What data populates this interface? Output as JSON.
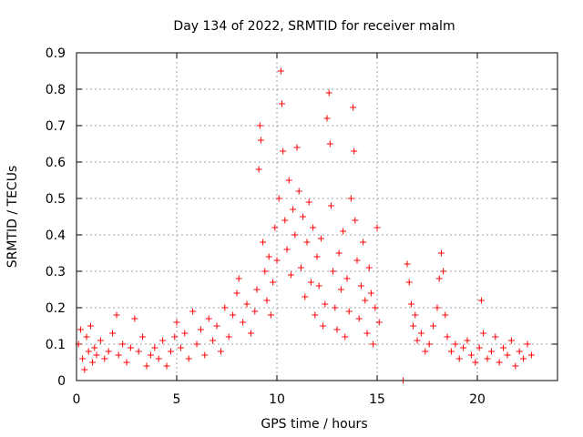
{
  "chart_data": {
    "type": "scatter",
    "title": "Day 134 of 2022, SRMTID for receiver malm",
    "xlabel": "GPS time / hours",
    "ylabel": "SRMTID / TECUs",
    "xlim": [
      0,
      24
    ],
    "ylim": [
      0,
      0.9
    ],
    "xticks": [
      0,
      5,
      10,
      15,
      20
    ],
    "yticks": [
      0,
      0.1,
      0.2,
      0.3,
      0.4,
      0.5,
      0.6,
      0.7,
      0.8,
      0.9
    ],
    "grid": true,
    "marker": "plus",
    "color": "#ff0000",
    "series": [
      {
        "name": "SRMTID",
        "points": [
          [
            0.1,
            0.1
          ],
          [
            0.2,
            0.14
          ],
          [
            0.3,
            0.06
          ],
          [
            0.4,
            0.03
          ],
          [
            0.5,
            0.12
          ],
          [
            0.6,
            0.08
          ],
          [
            0.7,
            0.15
          ],
          [
            0.8,
            0.05
          ],
          [
            0.9,
            0.09
          ],
          [
            1.0,
            0.07
          ],
          [
            1.2,
            0.11
          ],
          [
            1.4,
            0.06
          ],
          [
            1.6,
            0.08
          ],
          [
            1.8,
            0.13
          ],
          [
            2.0,
            0.18
          ],
          [
            2.1,
            0.07
          ],
          [
            2.3,
            0.1
          ],
          [
            2.5,
            0.05
          ],
          [
            2.7,
            0.09
          ],
          [
            2.9,
            0.17
          ],
          [
            3.1,
            0.08
          ],
          [
            3.3,
            0.12
          ],
          [
            3.5,
            0.04
          ],
          [
            3.7,
            0.07
          ],
          [
            3.9,
            0.09
          ],
          [
            4.1,
            0.06
          ],
          [
            4.3,
            0.11
          ],
          [
            4.5,
            0.04
          ],
          [
            4.7,
            0.08
          ],
          [
            4.9,
            0.12
          ],
          [
            5.0,
            0.16
          ],
          [
            5.2,
            0.09
          ],
          [
            5.4,
            0.13
          ],
          [
            5.6,
            0.06
          ],
          [
            5.8,
            0.19
          ],
          [
            6.0,
            0.1
          ],
          [
            6.2,
            0.14
          ],
          [
            6.4,
            0.07
          ],
          [
            6.6,
            0.17
          ],
          [
            6.8,
            0.11
          ],
          [
            7.0,
            0.15
          ],
          [
            7.2,
            0.08
          ],
          [
            7.4,
            0.2
          ],
          [
            7.6,
            0.12
          ],
          [
            7.8,
            0.18
          ],
          [
            8.0,
            0.24
          ],
          [
            8.1,
            0.28
          ],
          [
            8.3,
            0.16
          ],
          [
            8.5,
            0.21
          ],
          [
            8.7,
            0.13
          ],
          [
            8.9,
            0.19
          ],
          [
            9.0,
            0.25
          ],
          [
            9.1,
            0.58
          ],
          [
            9.15,
            0.7
          ],
          [
            9.2,
            0.66
          ],
          [
            9.3,
            0.38
          ],
          [
            9.4,
            0.3
          ],
          [
            9.5,
            0.22
          ],
          [
            9.6,
            0.34
          ],
          [
            9.7,
            0.18
          ],
          [
            9.8,
            0.27
          ],
          [
            9.9,
            0.42
          ],
          [
            10.0,
            0.33
          ],
          [
            10.1,
            0.5
          ],
          [
            10.2,
            0.85
          ],
          [
            10.25,
            0.76
          ],
          [
            10.3,
            0.63
          ],
          [
            10.4,
            0.44
          ],
          [
            10.5,
            0.36
          ],
          [
            10.6,
            0.55
          ],
          [
            10.7,
            0.29
          ],
          [
            10.8,
            0.47
          ],
          [
            10.9,
            0.4
          ],
          [
            11.0,
            0.64
          ],
          [
            11.1,
            0.52
          ],
          [
            11.2,
            0.31
          ],
          [
            11.3,
            0.45
          ],
          [
            11.4,
            0.23
          ],
          [
            11.5,
            0.38
          ],
          [
            11.6,
            0.49
          ],
          [
            11.7,
            0.27
          ],
          [
            11.8,
            0.42
          ],
          [
            11.9,
            0.18
          ],
          [
            12.0,
            0.34
          ],
          [
            12.1,
            0.26
          ],
          [
            12.2,
            0.39
          ],
          [
            12.3,
            0.15
          ],
          [
            12.4,
            0.21
          ],
          [
            12.5,
            0.72
          ],
          [
            12.6,
            0.79
          ],
          [
            12.65,
            0.65
          ],
          [
            12.7,
            0.48
          ],
          [
            12.8,
            0.3
          ],
          [
            12.9,
            0.2
          ],
          [
            13.0,
            0.14
          ],
          [
            13.1,
            0.35
          ],
          [
            13.2,
            0.25
          ],
          [
            13.3,
            0.41
          ],
          [
            13.4,
            0.12
          ],
          [
            13.5,
            0.28
          ],
          [
            13.6,
            0.19
          ],
          [
            13.7,
            0.5
          ],
          [
            13.8,
            0.75
          ],
          [
            13.85,
            0.63
          ],
          [
            13.9,
            0.44
          ],
          [
            14.0,
            0.33
          ],
          [
            14.1,
            0.17
          ],
          [
            14.2,
            0.26
          ],
          [
            14.3,
            0.38
          ],
          [
            14.4,
            0.22
          ],
          [
            14.5,
            0.13
          ],
          [
            14.6,
            0.31
          ],
          [
            14.7,
            0.24
          ],
          [
            14.8,
            0.1
          ],
          [
            14.9,
            0.2
          ],
          [
            15.0,
            0.42
          ],
          [
            15.1,
            0.16
          ],
          [
            16.3,
            0.0
          ],
          [
            16.5,
            0.32
          ],
          [
            16.6,
            0.27
          ],
          [
            16.7,
            0.21
          ],
          [
            16.8,
            0.15
          ],
          [
            16.9,
            0.18
          ],
          [
            17.0,
            0.11
          ],
          [
            17.2,
            0.13
          ],
          [
            17.4,
            0.08
          ],
          [
            17.6,
            0.1
          ],
          [
            17.8,
            0.15
          ],
          [
            18.0,
            0.2
          ],
          [
            18.1,
            0.28
          ],
          [
            18.2,
            0.35
          ],
          [
            18.3,
            0.3
          ],
          [
            18.4,
            0.18
          ],
          [
            18.5,
            0.12
          ],
          [
            18.7,
            0.08
          ],
          [
            18.9,
            0.1
          ],
          [
            19.1,
            0.06
          ],
          [
            19.3,
            0.09
          ],
          [
            19.5,
            0.11
          ],
          [
            19.7,
            0.07
          ],
          [
            19.9,
            0.05
          ],
          [
            20.1,
            0.09
          ],
          [
            20.2,
            0.22
          ],
          [
            20.3,
            0.13
          ],
          [
            20.5,
            0.06
          ],
          [
            20.7,
            0.08
          ],
          [
            20.9,
            0.12
          ],
          [
            21.1,
            0.05
          ],
          [
            21.3,
            0.09
          ],
          [
            21.5,
            0.07
          ],
          [
            21.7,
            0.11
          ],
          [
            21.9,
            0.04
          ],
          [
            22.1,
            0.08
          ],
          [
            22.3,
            0.06
          ],
          [
            22.5,
            0.1
          ],
          [
            22.7,
            0.07
          ]
        ]
      }
    ]
  }
}
